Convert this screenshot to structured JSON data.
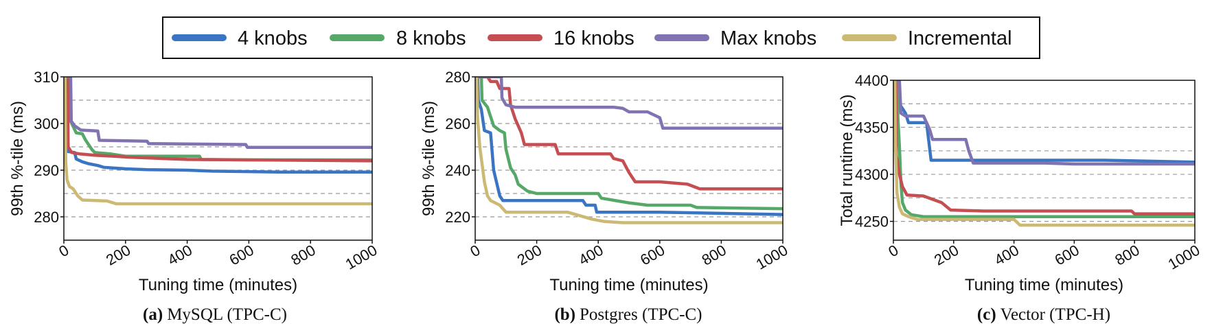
{
  "legend": {
    "entries": [
      {
        "label": "4 knobs",
        "color": "#3a75c4"
      },
      {
        "label": "8 knobs",
        "color": "#55a868"
      },
      {
        "label": "16 knobs",
        "color": "#c44e52"
      },
      {
        "label": "Max knobs",
        "color": "#8172b2"
      },
      {
        "label": "Incremental",
        "color": "#ccb974"
      }
    ]
  },
  "chart_data": [
    {
      "type": "line",
      "caption_letter": "(a)",
      "caption": "MySQL (TPC-C)",
      "xlabel": "Tuning time (minutes)",
      "ylabel": "99th %-tile (ms)",
      "xlim": [
        0,
        1000
      ],
      "ylim": [
        275,
        310
      ],
      "xticks": [
        0,
        200,
        400,
        600,
        800,
        1000
      ],
      "yticks": [
        280,
        290,
        300,
        310
      ],
      "grid_lines": [
        280,
        285,
        290,
        295,
        300,
        305
      ],
      "grid": "horizontal dashed",
      "series": [
        {
          "name": "4 knobs",
          "points": [
            [
              0,
              310
            ],
            [
              10,
              310
            ],
            [
              12,
              294
            ],
            [
              35,
              293.8
            ],
            [
              40,
              292.4
            ],
            [
              60,
              291.8
            ],
            [
              80,
              291.4
            ],
            [
              110,
              291
            ],
            [
              130,
              290.6
            ],
            [
              200,
              290.3
            ],
            [
              270,
              290.1
            ],
            [
              400,
              290
            ],
            [
              480,
              289.8
            ],
            [
              700,
              289.6
            ],
            [
              1000,
              289.6
            ]
          ]
        },
        {
          "name": "8 knobs",
          "points": [
            [
              0,
              310
            ],
            [
              20,
              310
            ],
            [
              22,
              300.5
            ],
            [
              40,
              298
            ],
            [
              60,
              297.8
            ],
            [
              70,
              296.5
            ],
            [
              90,
              294.5
            ],
            [
              100,
              293.8
            ],
            [
              150,
              293.5
            ],
            [
              200,
              293
            ],
            [
              300,
              293
            ],
            [
              440,
              293
            ],
            [
              445,
              292.3
            ],
            [
              600,
              292.2
            ],
            [
              800,
              292.2
            ],
            [
              1000,
              292.2
            ]
          ]
        },
        {
          "name": "16 knobs",
          "points": [
            [
              0,
              310
            ],
            [
              12,
              310
            ],
            [
              14,
              295
            ],
            [
              25,
              293.8
            ],
            [
              50,
              293.5
            ],
            [
              100,
              293.2
            ],
            [
              160,
              293
            ],
            [
              210,
              292.8
            ],
            [
              280,
              292.6
            ],
            [
              400,
              292.3
            ],
            [
              600,
              292.2
            ],
            [
              1000,
              292
            ]
          ]
        },
        {
          "name": "Max knobs",
          "points": [
            [
              0,
              310
            ],
            [
              22,
              310
            ],
            [
              24,
              300.5
            ],
            [
              35,
              299.5
            ],
            [
              55,
              298.6
            ],
            [
              110,
              298.4
            ],
            [
              115,
              296.4
            ],
            [
              270,
              296.2
            ],
            [
              275,
              295.7
            ],
            [
              590,
              295.5
            ],
            [
              595,
              294.9
            ],
            [
              1000,
              294.9
            ]
          ]
        },
        {
          "name": "Incremental",
          "points": [
            [
              0,
              310
            ],
            [
              4,
              310
            ],
            [
              6,
              292
            ],
            [
              10,
              288
            ],
            [
              18,
              286.5
            ],
            [
              30,
              286
            ],
            [
              45,
              284.5
            ],
            [
              60,
              283.6
            ],
            [
              140,
              283.4
            ],
            [
              170,
              282.8
            ],
            [
              250,
              282.8
            ],
            [
              1000,
              282.8
            ]
          ]
        }
      ]
    },
    {
      "type": "line",
      "caption_letter": "(b)",
      "caption": "Postgres (TPC-C)",
      "xlabel": "Tuning time (minutes)",
      "ylabel": "99th %-tile (ms)",
      "xlim": [
        0,
        1000
      ],
      "ylim": [
        210,
        280
      ],
      "xticks": [
        0,
        200,
        400,
        600,
        800,
        1000
      ],
      "yticks": [
        220,
        240,
        260,
        280
      ],
      "grid_lines": [
        220,
        230,
        240,
        250,
        260,
        270
      ],
      "grid": "horizontal dashed",
      "series": [
        {
          "name": "4 knobs",
          "points": [
            [
              0,
              280
            ],
            [
              8,
              280
            ],
            [
              10,
              270
            ],
            [
              20,
              266
            ],
            [
              30,
              257
            ],
            [
              50,
              256
            ],
            [
              60,
              240
            ],
            [
              80,
              229
            ],
            [
              90,
              227
            ],
            [
              350,
              227
            ],
            [
              360,
              225
            ],
            [
              390,
              225
            ],
            [
              395,
              222
            ],
            [
              600,
              222
            ],
            [
              1000,
              221
            ]
          ]
        },
        {
          "name": "8 knobs",
          "points": [
            [
              0,
              280
            ],
            [
              20,
              280
            ],
            [
              22,
              270
            ],
            [
              40,
              267
            ],
            [
              50,
              263
            ],
            [
              60,
              259
            ],
            [
              80,
              257
            ],
            [
              95,
              256
            ],
            [
              100,
              249
            ],
            [
              115,
              241
            ],
            [
              130,
              238
            ],
            [
              140,
              234
            ],
            [
              170,
              231
            ],
            [
              200,
              230
            ],
            [
              400,
              230
            ],
            [
              410,
              228
            ],
            [
              500,
              226
            ],
            [
              560,
              225
            ],
            [
              700,
              225
            ],
            [
              720,
              224
            ],
            [
              1000,
              223.5
            ]
          ]
        },
        {
          "name": "16 knobs",
          "points": [
            [
              0,
              280
            ],
            [
              40,
              280
            ],
            [
              50,
              278
            ],
            [
              70,
              278
            ],
            [
              80,
              275
            ],
            [
              110,
              275
            ],
            [
              115,
              268
            ],
            [
              130,
              262
            ],
            [
              150,
              256
            ],
            [
              160,
              251
            ],
            [
              260,
              251
            ],
            [
              270,
              247
            ],
            [
              440,
              247
            ],
            [
              450,
              245
            ],
            [
              480,
              244
            ],
            [
              500,
              239
            ],
            [
              520,
              235
            ],
            [
              600,
              235
            ],
            [
              690,
              234
            ],
            [
              730,
              232
            ],
            [
              1000,
              232
            ]
          ]
        },
        {
          "name": "Max knobs",
          "points": [
            [
              0,
              280
            ],
            [
              85,
              280
            ],
            [
              87,
              271
            ],
            [
              100,
              268
            ],
            [
              130,
              267
            ],
            [
              450,
              267
            ],
            [
              480,
              266.5
            ],
            [
              500,
              265
            ],
            [
              560,
              265
            ],
            [
              600,
              262.5
            ],
            [
              610,
              258
            ],
            [
              1000,
              258
            ]
          ]
        },
        {
          "name": "Incremental",
          "points": [
            [
              0,
              280
            ],
            [
              5,
              280
            ],
            [
              8,
              262
            ],
            [
              15,
              250
            ],
            [
              25,
              240
            ],
            [
              30,
              235
            ],
            [
              40,
              229
            ],
            [
              50,
              227
            ],
            [
              80,
              225
            ],
            [
              100,
              222
            ],
            [
              300,
              222
            ],
            [
              380,
              219
            ],
            [
              420,
              218
            ],
            [
              480,
              217.5
            ],
            [
              1000,
              217.5
            ]
          ]
        }
      ]
    },
    {
      "type": "line",
      "caption_letter": "(c)",
      "caption": "Vector (TPC-H)",
      "xlabel": "Tuning time (minutes)",
      "ylabel": "Total runtime (ms)",
      "xlim": [
        0,
        1000
      ],
      "ylim": [
        4230,
        4400
      ],
      "xticks": [
        0,
        200,
        400,
        600,
        800,
        1000
      ],
      "yticks": [
        4250,
        4300,
        4350,
        4400
      ],
      "grid_lines": [
        4250,
        4275,
        4300,
        4325,
        4350,
        4375
      ],
      "grid": "horizontal dashed",
      "series": [
        {
          "name": "4 knobs",
          "points": [
            [
              0,
              4400
            ],
            [
              15,
              4400
            ],
            [
              20,
              4375
            ],
            [
              40,
              4365
            ],
            [
              50,
              4355
            ],
            [
              110,
              4355
            ],
            [
              125,
              4315
            ],
            [
              500,
              4315
            ],
            [
              700,
              4315
            ],
            [
              1000,
              4313
            ]
          ]
        },
        {
          "name": "8 knobs",
          "points": [
            [
              0,
              4400
            ],
            [
              12,
              4400
            ],
            [
              15,
              4360
            ],
            [
              20,
              4330
            ],
            [
              25,
              4290
            ],
            [
              30,
              4270
            ],
            [
              40,
              4262
            ],
            [
              60,
              4257
            ],
            [
              100,
              4255
            ],
            [
              300,
              4255
            ],
            [
              700,
              4255
            ],
            [
              1000,
              4255
            ]
          ]
        },
        {
          "name": "16 knobs",
          "points": [
            [
              0,
              4400
            ],
            [
              8,
              4400
            ],
            [
              10,
              4320
            ],
            [
              20,
              4300
            ],
            [
              30,
              4287
            ],
            [
              45,
              4278
            ],
            [
              100,
              4277
            ],
            [
              160,
              4270
            ],
            [
              190,
              4262
            ],
            [
              300,
              4261
            ],
            [
              790,
              4261
            ],
            [
              800,
              4258
            ],
            [
              1000,
              4258
            ]
          ]
        },
        {
          "name": "Max knobs",
          "points": [
            [
              0,
              4400
            ],
            [
              20,
              4400
            ],
            [
              25,
              4365
            ],
            [
              40,
              4362
            ],
            [
              100,
              4362
            ],
            [
              120,
              4348
            ],
            [
              130,
              4337
            ],
            [
              240,
              4337
            ],
            [
              250,
              4325
            ],
            [
              265,
              4312
            ],
            [
              500,
              4312
            ],
            [
              600,
              4311
            ],
            [
              1000,
              4311
            ]
          ]
        },
        {
          "name": "Incremental",
          "points": [
            [
              0,
              4400
            ],
            [
              5,
              4400
            ],
            [
              7,
              4330
            ],
            [
              12,
              4280
            ],
            [
              20,
              4265
            ],
            [
              30,
              4258
            ],
            [
              50,
              4255
            ],
            [
              80,
              4252
            ],
            [
              100,
              4252
            ],
            [
              400,
              4252
            ],
            [
              420,
              4246
            ],
            [
              1000,
              4246
            ]
          ]
        }
      ]
    }
  ]
}
